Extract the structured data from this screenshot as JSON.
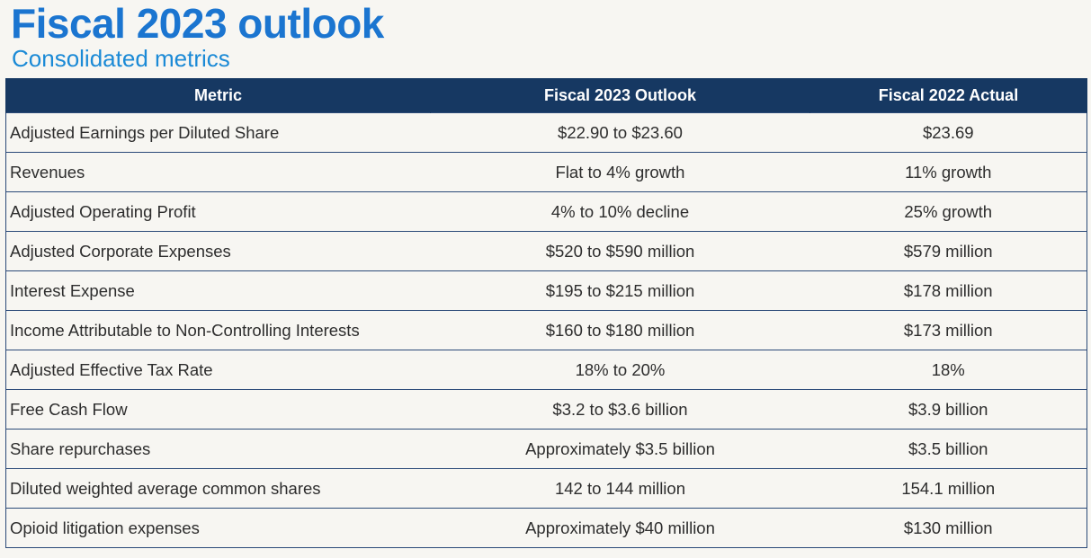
{
  "header": {
    "title": "Fiscal 2023 outlook",
    "subtitle": "Consolidated metrics"
  },
  "table": {
    "columns": [
      "Metric",
      "Fiscal 2023 Outlook",
      "Fiscal 2022 Actual"
    ],
    "rows": [
      {
        "metric": "Adjusted Earnings per Diluted Share",
        "outlook": "$22.90 to $23.60",
        "actual": "$23.69"
      },
      {
        "metric": "Revenues",
        "outlook": "Flat to 4% growth",
        "actual": "11% growth"
      },
      {
        "metric": "Adjusted Operating Profit",
        "outlook": "4% to 10% decline",
        "actual": "25% growth"
      },
      {
        "metric": "Adjusted Corporate Expenses",
        "outlook": "$520 to $590 million",
        "actual": "$579 million"
      },
      {
        "metric": "Interest Expense",
        "outlook": "$195 to $215 million",
        "actual": "$178 million"
      },
      {
        "metric": "Income Attributable to Non-Controlling Interests",
        "outlook": "$160 to $180 million",
        "actual": "$173 million"
      },
      {
        "metric": "Adjusted Effective Tax Rate",
        "outlook": "18% to 20%",
        "actual": "18%"
      },
      {
        "metric": "Free Cash Flow",
        "outlook": "$3.2 to $3.6 billion",
        "actual": "$3.9 billion"
      },
      {
        "metric": "Share repurchases",
        "outlook": "Approximately $3.5 billion",
        "actual": "$3.5 billion"
      },
      {
        "metric": "Diluted weighted average common shares",
        "outlook": "142 to 144 million",
        "actual": "154.1 million"
      },
      {
        "metric": "Opioid litigation expenses",
        "outlook": "Approximately $40 million",
        "actual": "$130 million"
      }
    ]
  },
  "colors": {
    "title": "#1b75d0",
    "subtitle": "#1b8ad6",
    "header_bg": "#163862",
    "background": "#f7f6f2"
  }
}
